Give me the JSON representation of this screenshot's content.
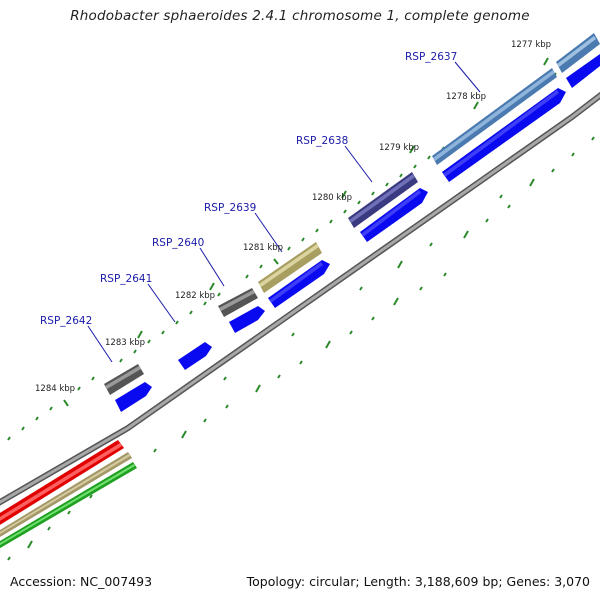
{
  "title": "Rhodobacter sphaeroides 2.4.1 chromosome 1, complete genome",
  "footer": {
    "accession": "Accession: NC_007493",
    "summary": "Topology: circular; Length: 3,188,609 bp; Genes: 3,070"
  },
  "ticks": [
    {
      "label": "1277 kbp"
    },
    {
      "label": "1278 kbp"
    },
    {
      "label": "1279 kbp"
    },
    {
      "label": "1280 kbp"
    },
    {
      "label": "1281 kbp"
    },
    {
      "label": "1282 kbp"
    },
    {
      "label": "1283 kbp"
    },
    {
      "label": "1284 kbp"
    }
  ],
  "genes": [
    {
      "name": "RSP_2637"
    },
    {
      "name": "RSP_2638"
    },
    {
      "name": "RSP_2639"
    },
    {
      "name": "RSP_2640"
    },
    {
      "name": "RSP_2641"
    },
    {
      "name": "RSP_2642"
    }
  ],
  "colors": {
    "cds_blue": "#0a0af0",
    "cog_steel": "#4a7ab0",
    "cog_slate": "#3a3a80",
    "cog_khaki": "#b8b080",
    "cog_gray": "#555555",
    "gc_red": "#ff1a1a",
    "gc_khaki": "#b9ac7a",
    "gc_green": "#36c236",
    "backbone": "#888888",
    "tick_green": "#2a8a2a",
    "label_blue": "#1a1aa8"
  }
}
